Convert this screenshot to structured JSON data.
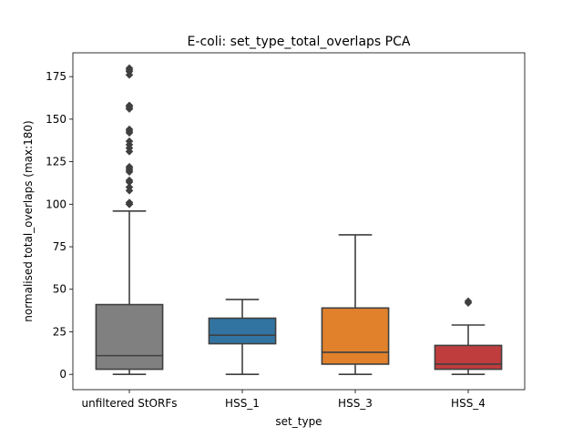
{
  "chart_data": {
    "type": "box",
    "title": "E-coli: set_type_total_overlaps PCA",
    "xlabel": "set_type",
    "ylabel": "normalised total_overlaps (max:180)",
    "ylim": [
      -9,
      189
    ],
    "yticks": [
      0,
      25,
      50,
      75,
      100,
      125,
      150,
      175
    ],
    "grid": false,
    "categories": [
      "unfiltered StORFs",
      "HSS_1",
      "HSS_3",
      "HSS_4"
    ],
    "boxes": [
      {
        "category": "unfiltered StORFs",
        "color": "#808080",
        "whisker_low": 0,
        "q1": 3,
        "median": 11,
        "q3": 41,
        "whisker_high": 96,
        "outliers": [
          100,
          100,
          101,
          108,
          110,
          113,
          114,
          119,
          120,
          121,
          122,
          131,
          133,
          135,
          137,
          142,
          143,
          144,
          156,
          157,
          158,
          158,
          176,
          178,
          179,
          180
        ]
      },
      {
        "category": "HSS_1",
        "color": "#3274a1",
        "whisker_low": 0,
        "q1": 18,
        "median": 23,
        "q3": 33,
        "whisker_high": 44,
        "outliers": []
      },
      {
        "category": "HSS_3",
        "color": "#e1812c",
        "whisker_low": 0,
        "q1": 6,
        "median": 13,
        "q3": 39,
        "whisker_high": 82,
        "outliers": []
      },
      {
        "category": "HSS_4",
        "color": "#c03d3e",
        "whisker_low": 0,
        "q1": 3,
        "median": 6,
        "q3": 17,
        "whisker_high": 29,
        "outliers": [
          42,
          43
        ]
      }
    ],
    "line_color": "#3f3f3f"
  }
}
